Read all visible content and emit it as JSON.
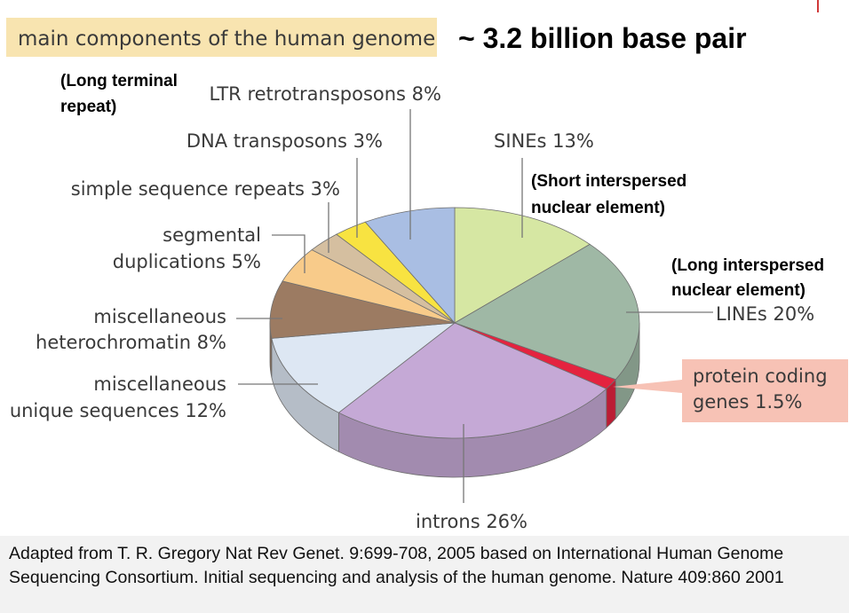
{
  "title": "main components of the human genome",
  "subtitle": "~ 3.2 billion base pair",
  "chart_data": {
    "type": "pie",
    "title": "main components of the human genome",
    "slices": [
      {
        "label": "SINEs 13%",
        "value": 13,
        "color": "#d6e7a3"
      },
      {
        "label": "LINEs 20%",
        "value": 20,
        "color": "#9fb8a5"
      },
      {
        "label": "protein coding genes 1.5%",
        "value": 1.5,
        "color": "#e4233f"
      },
      {
        "label": "introns 26%",
        "value": 26,
        "color": "#c5a9d6"
      },
      {
        "label": "miscellaneous unique sequences 12%",
        "value": 12,
        "color": "#dde7f3"
      },
      {
        "label": "miscellaneous heterochromatin 8%",
        "value": 8,
        "color": "#9c7b62"
      },
      {
        "label": "segmental duplications 5%",
        "value": 5,
        "color": "#f8cb8a"
      },
      {
        "label": "simple sequence repeats 3%",
        "value": 3,
        "color": "#d5bfa0"
      },
      {
        "label": "DNA transposons 3%",
        "value": 3,
        "color": "#f8e341"
      },
      {
        "label": "LTR retrotransposons 8%",
        "value": 8,
        "color": "#a9bee3"
      }
    ]
  },
  "labels": {
    "sines": "SINEs 13%",
    "sines_note_1": "(Short interspersed",
    "sines_note_2": "nuclear element)",
    "lines": "LINEs 20%",
    "lines_note_1": "(Long interspersed",
    "lines_note_2": "nuclear element)",
    "protein_1": "protein coding",
    "protein_2": "genes 1.5%",
    "introns": "introns 26%",
    "unique_1": "miscellaneous",
    "unique_2": "unique sequences 12%",
    "hetero_1": "miscellaneous",
    "hetero_2": "heterochromatin 8%",
    "segdup_1": "segmental",
    "segdup_2": "duplications 5%",
    "ssr": "simple sequence repeats 3%",
    "dna": "DNA transposons 3%",
    "ltr": "LTR retrotransposons 8%",
    "ltr_note_1": "(Long terminal",
    "ltr_note_2": "repeat)"
  },
  "caption": "Adapted from T. R. Gregory Nat Rev Genet. 9:699-708, 2005 based on International Human Genome Sequencing Consortium. Initial sequencing and analysis of the human genome. Nature 409:860 2001",
  "colors": {
    "title_box": "#f8e4b0",
    "protein_box": "#f7c2b5"
  }
}
